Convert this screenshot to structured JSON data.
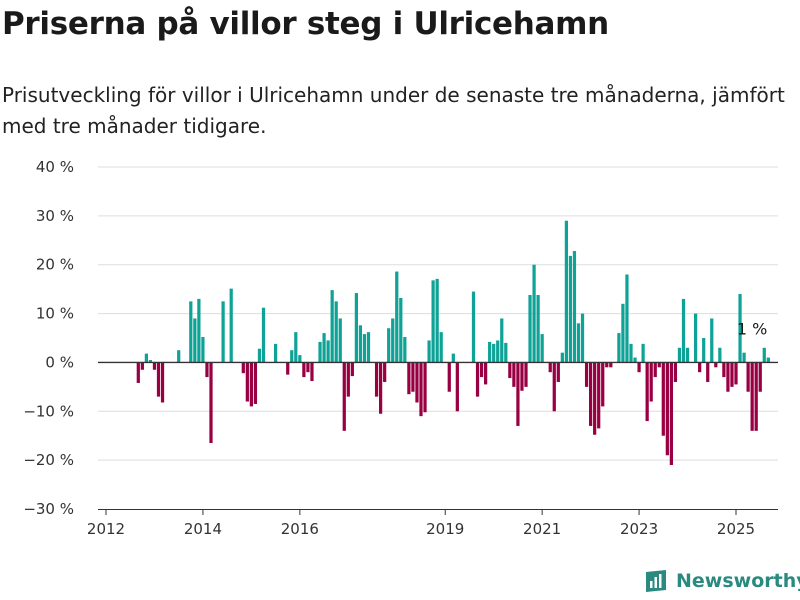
{
  "header": {
    "title": "Priserna på villor steg i Ulricehamn",
    "subtitle": "Prisutveckling för villor i Ulricehamn under de senaste tre månaderna, jämfört med tre månader tidigare."
  },
  "brand": {
    "name": "Newsworthy",
    "icon": "newsworthy-logo-icon"
  },
  "colors": {
    "positive": "#0fa296",
    "negative": "#980043",
    "grid": "#dddddd",
    "axis": "#333333"
  },
  "chart_data": {
    "type": "bar",
    "x_start": "2012-09",
    "x_end": "2025-05",
    "ylim": [
      -30,
      40
    ],
    "y_ticks": [
      {
        "value": 40,
        "label": "40 %"
      },
      {
        "value": 30,
        "label": "30 %"
      },
      {
        "value": 20,
        "label": "20 %"
      },
      {
        "value": 10,
        "label": "10 %"
      },
      {
        "value": 0,
        "label": "0 %"
      },
      {
        "value": -10,
        "label": "−10 %"
      },
      {
        "value": -20,
        "label": "−20 %"
      },
      {
        "value": -30,
        "label": "−30 %"
      }
    ],
    "x_ticks": [
      {
        "date": "2012-01",
        "label": "2012"
      },
      {
        "date": "2014-01",
        "label": "2014"
      },
      {
        "date": "2016-01",
        "label": "2016"
      },
      {
        "date": "2019-01",
        "label": "2019"
      },
      {
        "date": "2021-01",
        "label": "2021"
      },
      {
        "date": "2023-01",
        "label": "2023"
      },
      {
        "date": "2025-01",
        "label": "2025"
      }
    ],
    "values": [
      -4.2,
      -1.5,
      1.8,
      0.5,
      -1.5,
      -7,
      -8.2,
      0,
      0,
      0,
      2.5,
      0,
      0,
      12.5,
      9,
      13,
      5.2,
      -3,
      -16.5,
      0,
      0,
      12.5,
      0,
      15.1,
      0,
      0,
      -2.2,
      -8,
      -9,
      -8.5,
      2.8,
      11.2,
      0,
      0,
      3.8,
      0,
      0,
      -2.5,
      2.5,
      6.2,
      1.5,
      -3,
      -2,
      -3.8,
      0,
      4.2,
      6,
      4.5,
      14.8,
      12.5,
      9,
      -14,
      -7,
      -2.8,
      14.2,
      7.6,
      5.8,
      6.2,
      0,
      -7,
      -10.5,
      -4,
      7,
      9,
      18.6,
      13.2,
      5.2,
      -6.5,
      -6,
      -8.2,
      -11,
      -10.2,
      4.5,
      16.8,
      17.1,
      6.2,
      0,
      -6,
      1.8,
      -10,
      0,
      0,
      0,
      14.5,
      -7,
      -3,
      -4.5,
      4.2,
      3.8,
      4.5,
      9,
      4,
      -3.2,
      -5,
      -13,
      -5.8,
      -5,
      13.8,
      20,
      13.8,
      5.8,
      0,
      -2,
      -10,
      -4,
      2,
      29,
      21.8,
      22.8,
      8,
      10,
      -5,
      -13,
      -14.8,
      -13.5,
      -9,
      -1,
      -1,
      0,
      6,
      12,
      18,
      3.8,
      1,
      -2,
      3.8,
      -12,
      -8,
      -3,
      -1,
      -15,
      -19,
      -21,
      -4,
      3,
      13,
      3,
      0,
      10,
      -2,
      5,
      -4,
      9,
      -1,
      3,
      -3,
      -6,
      -5,
      -4.5,
      14,
      2,
      -6,
      -14,
      -14,
      -6,
      3,
      1
    ],
    "annotations": [
      {
        "label": "1 %"
      }
    ]
  }
}
